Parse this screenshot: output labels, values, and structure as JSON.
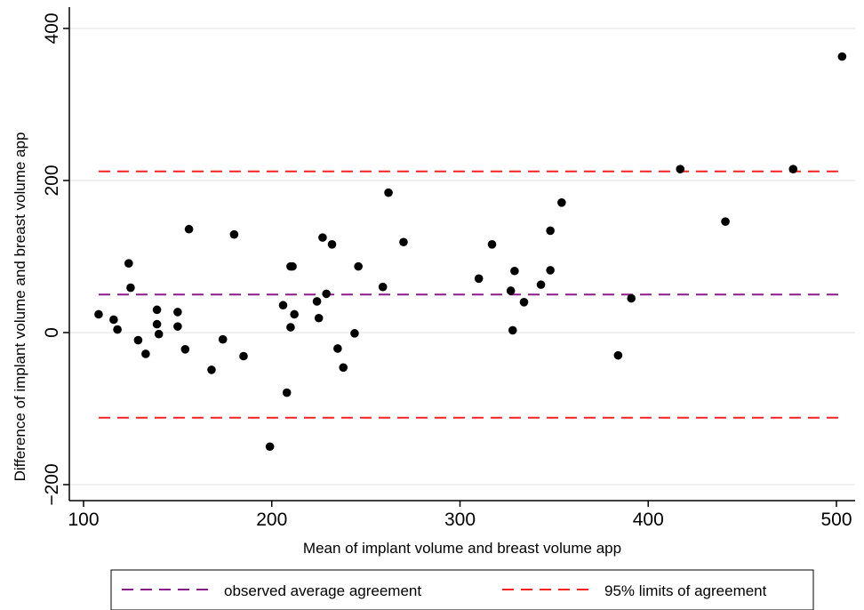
{
  "chart_data": {
    "type": "scatter",
    "xlabel": "Mean of implant volume and breast volume app",
    "ylabel": "Difference of implant volume and  breast volume app",
    "xlim": [
      95,
      510
    ],
    "ylim": [
      -230,
      415
    ],
    "xticks": [
      100,
      200,
      300,
      400,
      500
    ],
    "yticks": [
      -200,
      0,
      200,
      400
    ],
    "xtick_labels": [
      "100",
      "200",
      "300",
      "400",
      "500"
    ],
    "ytick_labels": [
      "−200",
      "0",
      "200",
      "400"
    ],
    "grid": true,
    "legend_position": "bottom",
    "series": [
      {
        "name": "observed average agreement",
        "kind": "hline",
        "y": 50,
        "x_range": [
          108,
          503
        ],
        "color": "#8B1A8B",
        "dash": "dashed"
      },
      {
        "name": "95% limits of agreement",
        "kind": "hline",
        "y": [
          -112,
          212
        ],
        "x_range": [
          108,
          503
        ],
        "color": "#FF2020",
        "dash": "dashed"
      },
      {
        "kind": "points",
        "color": "#000000",
        "points": [
          [
            108,
            24
          ],
          [
            116,
            17
          ],
          [
            118,
            4
          ],
          [
            124,
            91
          ],
          [
            125,
            59
          ],
          [
            129,
            -10
          ],
          [
            133,
            -28
          ],
          [
            139,
            11
          ],
          [
            139,
            30
          ],
          [
            140,
            -2
          ],
          [
            150,
            27
          ],
          [
            150,
            8
          ],
          [
            154,
            -22
          ],
          [
            156,
            136
          ],
          [
            168,
            -49
          ],
          [
            174,
            -9
          ],
          [
            180,
            129
          ],
          [
            185,
            -31
          ],
          [
            199,
            -150
          ],
          [
            206,
            36
          ],
          [
            208,
            -79
          ],
          [
            210,
            87
          ],
          [
            210,
            7
          ],
          [
            211,
            87
          ],
          [
            212,
            24
          ],
          [
            224,
            41
          ],
          [
            225,
            19
          ],
          [
            227,
            125
          ],
          [
            229,
            51
          ],
          [
            232,
            116
          ],
          [
            235,
            -21
          ],
          [
            238,
            -46
          ],
          [
            244,
            -1
          ],
          [
            246,
            87
          ],
          [
            259,
            60
          ],
          [
            262,
            184
          ],
          [
            270,
            119
          ],
          [
            310,
            71
          ],
          [
            317,
            116
          ],
          [
            327,
            55
          ],
          [
            328,
            3
          ],
          [
            329,
            81
          ],
          [
            334,
            40
          ],
          [
            343,
            63
          ],
          [
            348,
            134
          ],
          [
            348,
            82
          ],
          [
            354,
            171
          ],
          [
            384,
            -30
          ],
          [
            391,
            45
          ],
          [
            417,
            215
          ],
          [
            441,
            146
          ],
          [
            477,
            215
          ],
          [
            503,
            363
          ]
        ]
      }
    ]
  },
  "legend": {
    "items": [
      {
        "label": "observed average agreement",
        "color": "#8B1A8B"
      },
      {
        "label": "95% limits of agreement",
        "color": "#FF2020"
      }
    ]
  }
}
